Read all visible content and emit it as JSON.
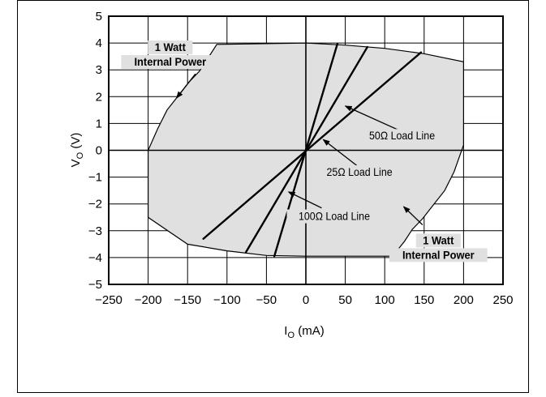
{
  "chart_data": {
    "type": "line",
    "title": "",
    "xlabel": "I",
    "xlabel_sub": "O",
    "xlabel_unit": " (mA)",
    "ylabel": "V",
    "ylabel_sub": "O",
    "ylabel_unit": " (V)",
    "xlim": [
      -250,
      250
    ],
    "ylim": [
      -5,
      5
    ],
    "xticks": [
      -250,
      -200,
      -150,
      -100,
      -50,
      0,
      50,
      100,
      150,
      200,
      250
    ],
    "yticks": [
      -5,
      -4,
      -3,
      -2,
      -1,
      0,
      1,
      2,
      3,
      4,
      5
    ],
    "xtick_labels": [
      "−250",
      "−200",
      "−150",
      "−100",
      "−50",
      "0",
      "50",
      "100",
      "150",
      "200",
      "250"
    ],
    "ytick_labels": [
      "−5",
      "−4",
      "−3",
      "−2",
      "−1",
      "0",
      "1",
      "2",
      "3",
      "4",
      "5"
    ],
    "grid": true,
    "fill_color": "#e0e0e0",
    "line_color": "#000000",
    "safe_operating_area": {
      "points": [
        [
          -200,
          0
        ],
        [
          -188,
          0.8
        ],
        [
          -176,
          1.5
        ],
        [
          -160,
          2.1
        ],
        [
          -148,
          2.55
        ],
        [
          -135,
          2.95
        ],
        [
          -125,
          3.4
        ],
        [
          -113,
          3.95
        ],
        [
          0,
          4.0
        ],
        [
          50,
          3.92
        ],
        [
          100,
          3.8
        ],
        [
          150,
          3.6
        ],
        [
          200,
          3.3
        ],
        [
          200,
          0.2
        ],
        [
          188,
          -0.8
        ],
        [
          176,
          -1.5
        ],
        [
          160,
          -2.1
        ],
        [
          148,
          -2.55
        ],
        [
          135,
          -2.95
        ],
        [
          125,
          -3.4
        ],
        [
          110,
          -3.95
        ],
        [
          0,
          -3.95
        ],
        [
          -50,
          -3.92
        ],
        [
          -100,
          -3.75
        ],
        [
          -150,
          -3.5
        ],
        [
          -200,
          -2.5
        ]
      ]
    },
    "load_lines": [
      {
        "name": "25Ω  Load Line",
        "from": [
          -130,
          -3.3
        ],
        "to": [
          146,
          3.65
        ]
      },
      {
        "name": "50Ω  Load Line",
        "from": [
          -76,
          -3.8
        ],
        "to": [
          78,
          3.85
        ]
      },
      {
        "name": "100Ω  Load Line",
        "from": [
          -40,
          -3.95
        ],
        "to": [
          40,
          3.97
        ]
      }
    ],
    "annotations": [
      {
        "name": "power-top",
        "lines": [
          "1 Watt",
          "Internal Power"
        ],
        "text_at": [
          -172,
          3.7
        ],
        "arrow_from": [
          -140,
          2.85
        ],
        "arrow_to": [
          -164,
          1.95
        ]
      },
      {
        "name": "power-bottom",
        "lines": [
          "1 Watt",
          "Internal Power"
        ],
        "text_at": [
          168,
          -3.5
        ],
        "arrow_from": [
          148,
          -2.78
        ],
        "arrow_to": [
          124,
          -2.1
        ]
      },
      {
        "name": "label-50",
        "lines": [
          "50Ω  Load Line"
        ],
        "text_at": [
          122,
          0.4
        ],
        "arrow_from": [
          118,
          0.75
        ],
        "arrow_to": [
          50,
          1.65
        ]
      },
      {
        "name": "label-25",
        "lines": [
          "25Ω  Load Line"
        ],
        "text_at": [
          68,
          -0.95
        ],
        "arrow_from": [
          66,
          -0.6
        ],
        "arrow_to": [
          22,
          0.4
        ]
      },
      {
        "name": "label-100",
        "lines": [
          "100Ω  Load Line"
        ],
        "text_at": [
          36,
          -2.6
        ],
        "arrow_from": [
          20,
          -2.15
        ],
        "arrow_to": [
          -22,
          -1.55
        ]
      }
    ]
  }
}
